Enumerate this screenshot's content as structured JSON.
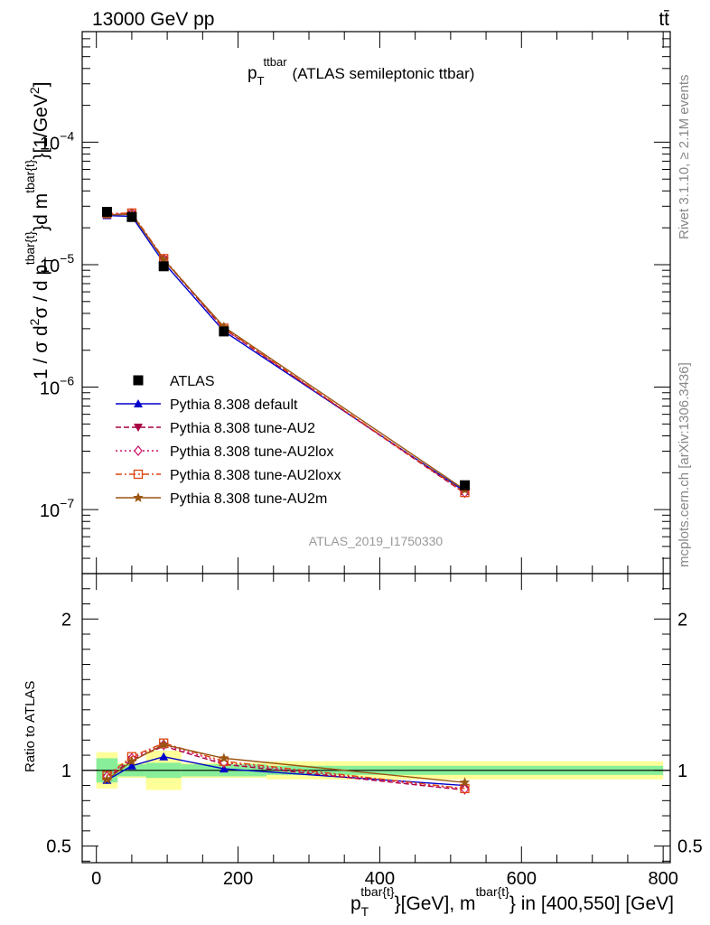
{
  "header": {
    "left": "13000 GeV pp",
    "right": "tt̄"
  },
  "side_labels": {
    "rivet": "Rivet 3.1.10, ≥ 2.1M events",
    "mcplots": "mcplots.cern.ch [arXiv:1306.3436]"
  },
  "chart_data": {
    "type": "line",
    "title": "p_T^{ttbar} (ATLAS semileptonic ttbar)",
    "title_main": "p",
    "title_sub": "T",
    "title_sup": "ttbar",
    "title_rest": "(ATLAS semileptonic ttbar)",
    "watermark": "ATLAS_2019_I1750330",
    "ylabel": "1 / σ d²σ / d p_T^{tbar{t}} d m^{tbar{t}} [1/GeV²]",
    "ylabel_parts": {
      "a": "1 / σ d",
      "a_sup": "2",
      "b": "σ / d p",
      "b_sub": "T",
      "b_sup": "tbar{t}",
      "c": "}d m",
      "c_sup": "tbar{t}",
      "d": "}[1/GeV",
      "d_sup": "2",
      "e": "]"
    },
    "xlabel": "p_T^{tbar{t}}[GeV], m^{tbar{t}} in [400,550] [GeV]",
    "xlabel_parts": {
      "a": "p",
      "a_sub": "T",
      "a_sup": "tbar{t}",
      "b": "}[GeV], m",
      "b_sup": "tbar{t}",
      "c": "} in [400,550] [GeV]"
    },
    "ratio_ylabel": "Ratio to ATLAS",
    "xlim": [
      -20,
      810
    ],
    "ylim_main": [
      3e-08,
      0.0008
    ],
    "ylim_ratio": [
      0.39,
      2.3
    ],
    "log_y": true,
    "x_ticks": [
      0,
      200,
      400,
      600,
      800
    ],
    "x_tick_labels": [
      "0",
      "200",
      "400",
      "600",
      "800"
    ],
    "y_ticks_main": [
      1e-07,
      1e-06,
      1e-05,
      0.0001
    ],
    "y_tick_labels_main": [
      {
        "base": "10",
        "exp": "−7"
      },
      {
        "base": "10",
        "exp": "−6"
      },
      {
        "base": "10",
        "exp": "−5"
      },
      {
        "base": "10",
        "exp": "−4"
      }
    ],
    "y_ticks_ratio": [
      0.5,
      1,
      2
    ],
    "y_tick_labels_ratio": [
      "0.5",
      "1",
      "2"
    ],
    "bins": [
      [
        0,
        30
      ],
      [
        30,
        70
      ],
      [
        70,
        120
      ],
      [
        120,
        240
      ],
      [
        240,
        800
      ]
    ],
    "x": [
      15,
      50,
      95,
      180,
      520
    ],
    "data": {
      "name": "ATLAS",
      "values": [
        2.7e-05,
        2.45e-05,
        9.7e-06,
        2.85e-06,
        1.58e-07
      ],
      "ratio_band_stat": [
        0.08,
        0.04,
        0.05,
        0.04,
        0.03
      ],
      "ratio_band_total": [
        0.12,
        0.05,
        0.13,
        0.05,
        0.06
      ]
    },
    "series": [
      {
        "name": "Pythia 8.308 default",
        "color": "#0000cc",
        "marker": "triangle-up",
        "dash": "",
        "values": [
          2.52e-05,
          2.48e-05,
          1.04e-05,
          2.86e-06,
          1.41e-07
        ],
        "ratio": [
          0.935,
          1.03,
          1.09,
          1.01,
          0.9
        ]
      },
      {
        "name": "Pythia 8.308 tune-AU2",
        "color": "#aa0044",
        "marker": "triangle-down",
        "dash": "6,3",
        "values": [
          2.57e-05,
          2.6e-05,
          1.1e-05,
          2.99e-06,
          1.36e-07
        ],
        "ratio": [
          0.95,
          1.07,
          1.16,
          1.04,
          0.87
        ]
      },
      {
        "name": "Pythia 8.308 tune-AU2lox",
        "color": "#cc1166",
        "marker": "diamond",
        "dash": "2,3",
        "values": [
          2.6e-05,
          2.62e-05,
          1.11e-05,
          3.01e-06,
          1.37e-07
        ],
        "ratio": [
          0.96,
          1.08,
          1.17,
          1.05,
          0.875
        ]
      },
      {
        "name": "Pythia 8.308 tune-AU2loxx",
        "color": "#dd4411",
        "marker": "square",
        "dash": "7,3,2,3",
        "values": [
          2.62e-05,
          2.64e-05,
          1.12e-05,
          3.03e-06,
          1.38e-07
        ],
        "ratio": [
          0.965,
          1.09,
          1.18,
          1.06,
          0.88
        ]
      },
      {
        "name": "Pythia 8.308 tune-AU2m",
        "color": "#995511",
        "marker": "star",
        "dash": "",
        "values": [
          2.55e-05,
          2.58e-05,
          1.1e-05,
          3.1e-06,
          1.45e-07
        ],
        "ratio": [
          0.94,
          1.06,
          1.17,
          1.08,
          0.92
        ]
      }
    ],
    "legend_position": "middle-left",
    "grid": false
  }
}
